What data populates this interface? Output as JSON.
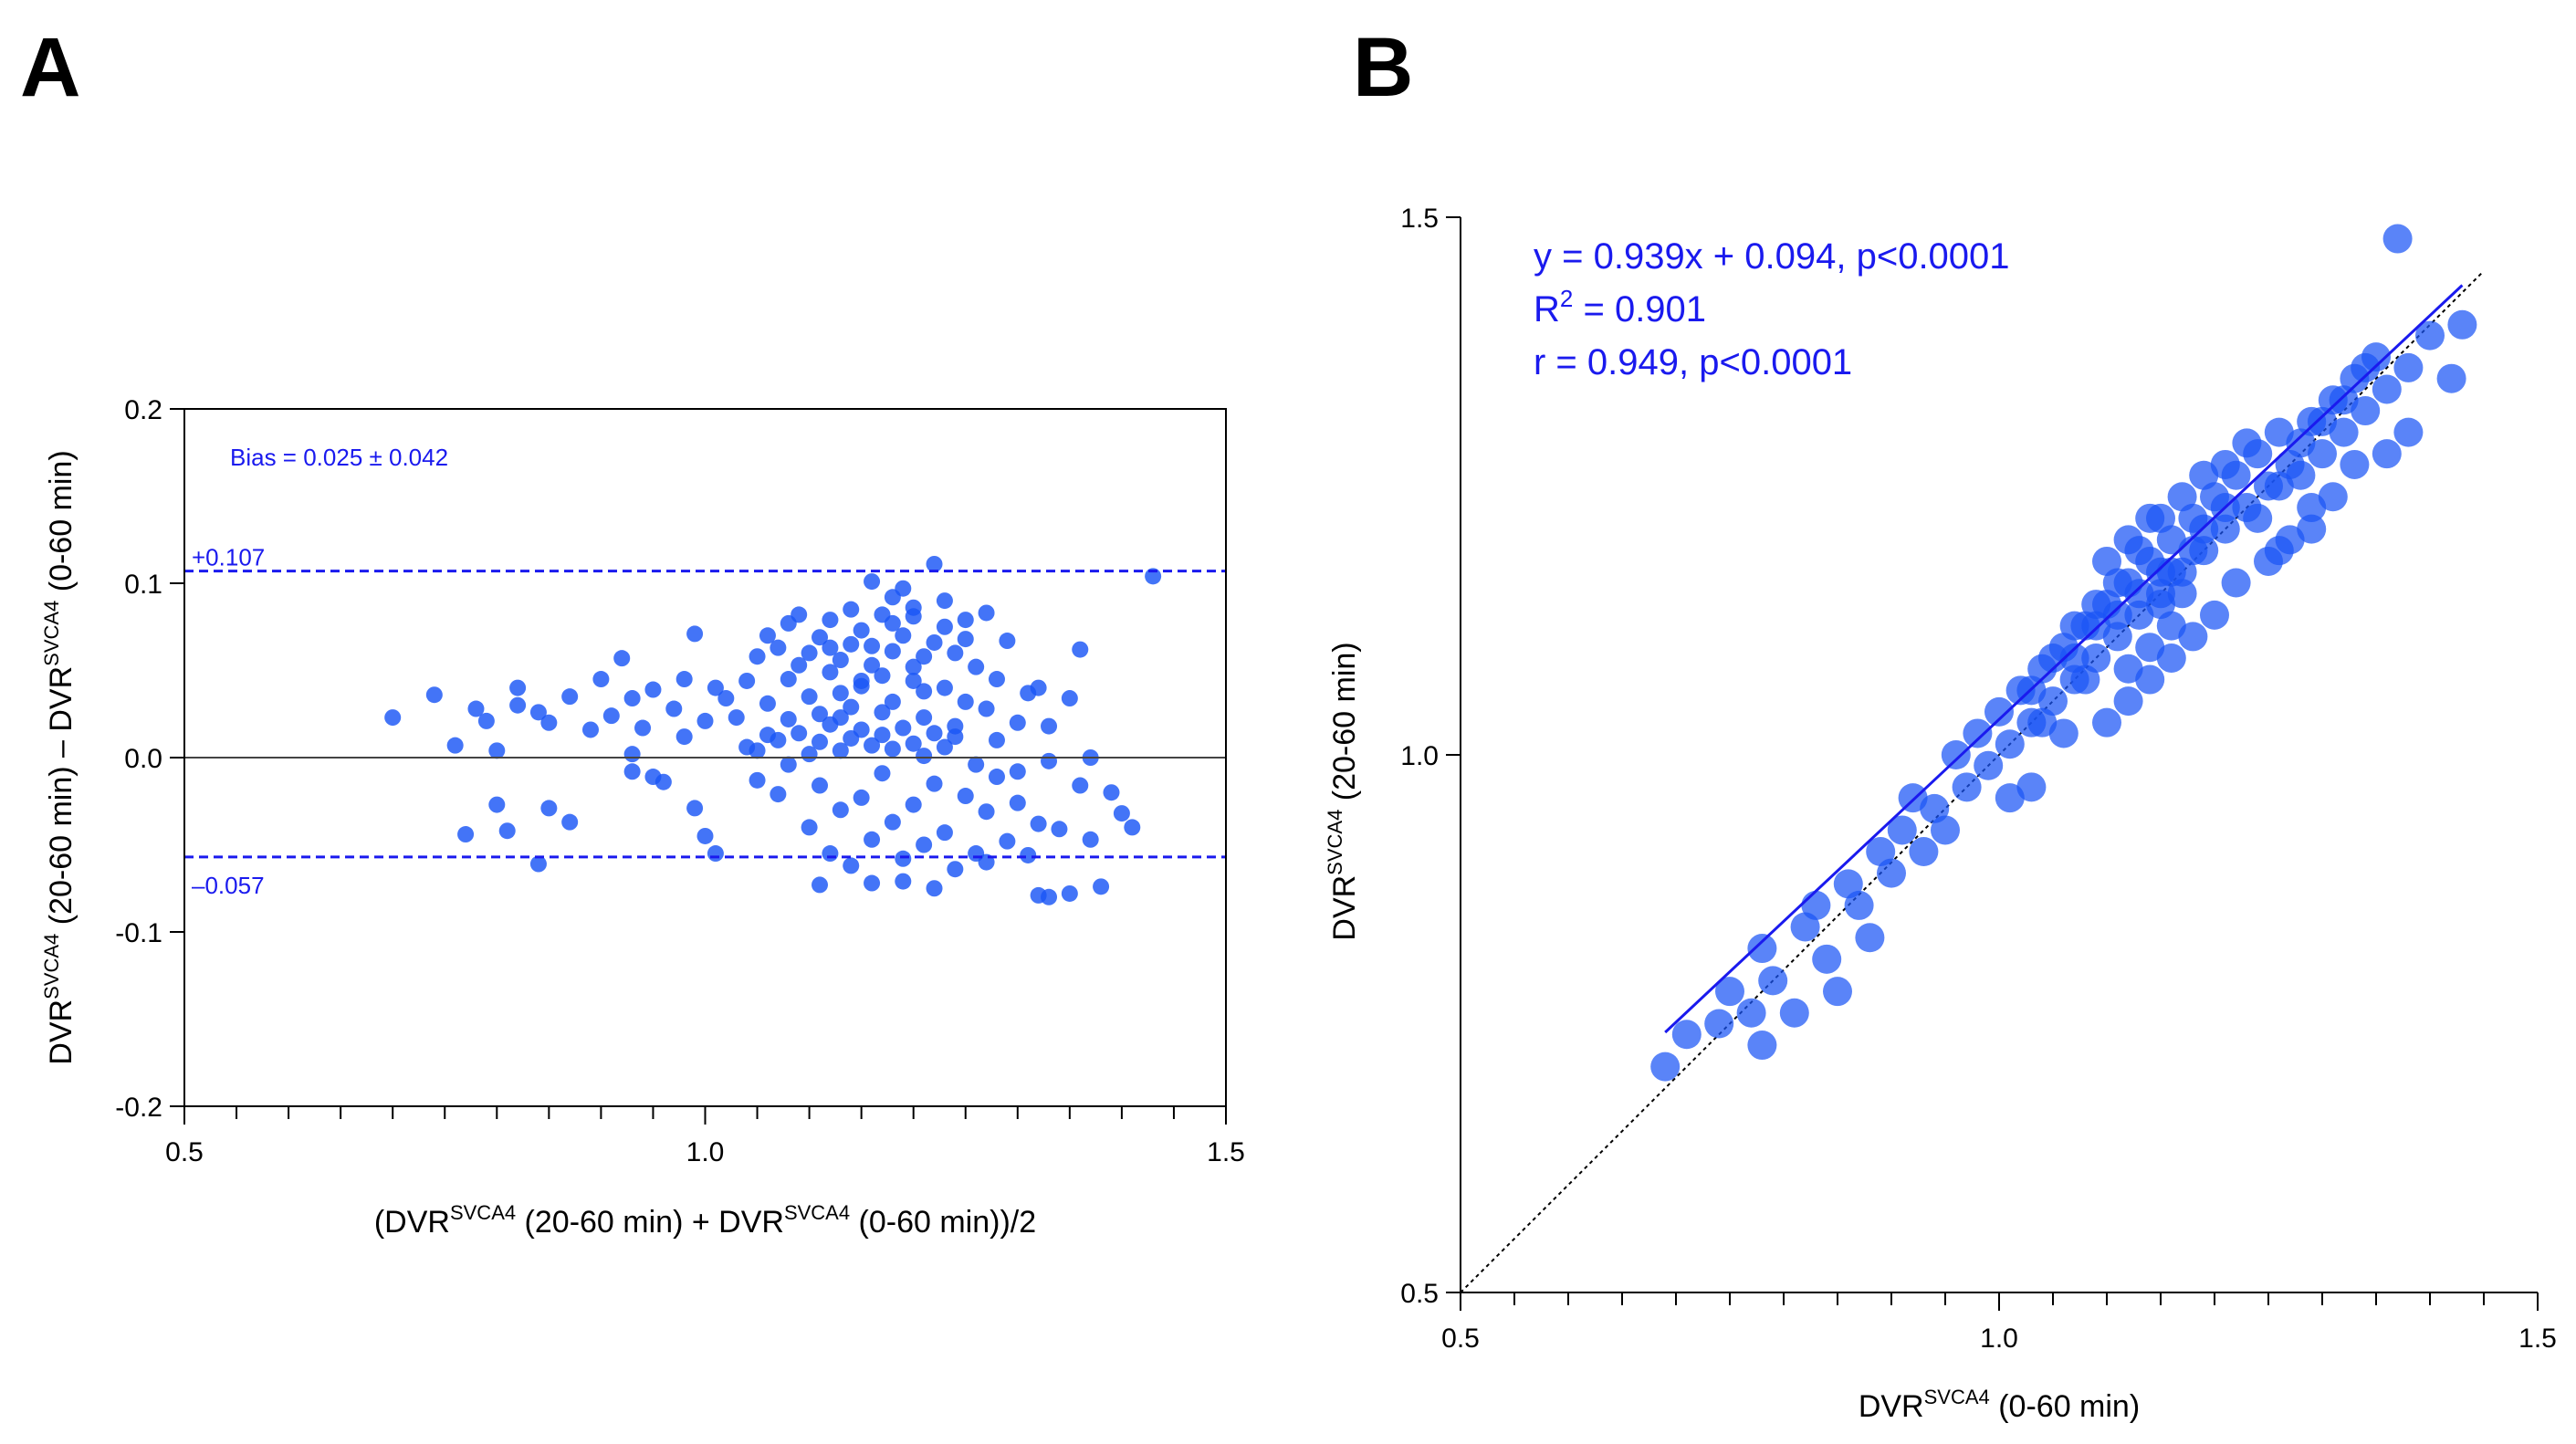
{
  "panels": {
    "a_letter": "A",
    "b_letter": "B"
  },
  "colors": {
    "point": "#1a55f5",
    "line": "#1a1aee",
    "axis": "#000000"
  },
  "chart_data": [
    {
      "type": "scatter",
      "panel": "A",
      "xlabel_parts": [
        "(DVR",
        "SVCA4",
        " (20-60 min) + DVR",
        "SVCA4",
        " (0-60 min))/2"
      ],
      "ylabel_parts": [
        "DVR",
        "SVCA4",
        " (20-60 min) – DVR",
        "SVCA4",
        " (0-60 min)"
      ],
      "xlim": [
        0.5,
        1.5
      ],
      "ylim": [
        -0.2,
        0.2
      ],
      "xticks": [
        0.5,
        1.0,
        1.5
      ],
      "xtick_labels": [
        "0.5",
        "1.0",
        "1.5"
      ],
      "yticks": [
        -0.2,
        -0.1,
        0.0,
        0.1,
        0.2
      ],
      "ytick_labels": [
        "-0.2",
        "-0.1",
        "0.0",
        "0.1",
        "0.2"
      ],
      "annotation": "Bias = 0.025 ± 0.042",
      "upper_loa": 0.107,
      "upper_loa_label": "+0.107",
      "lower_loa": -0.057,
      "lower_loa_label": "–0.057",
      "zero_line": 0,
      "grid": false,
      "points": [
        [
          0.7,
          0.023
        ],
        [
          0.74,
          0.036
        ],
        [
          0.76,
          0.007
        ],
        [
          0.78,
          0.028
        ],
        [
          0.79,
          0.021
        ],
        [
          0.8,
          0.004
        ],
        [
          0.82,
          0.04
        ],
        [
          0.82,
          0.03
        ],
        [
          0.84,
          0.026
        ],
        [
          0.85,
          0.02
        ],
        [
          0.87,
          0.035
        ],
        [
          0.89,
          0.016
        ],
        [
          0.9,
          0.045
        ],
        [
          0.91,
          0.024
        ],
        [
          0.92,
          0.057
        ],
        [
          0.93,
          0.034
        ],
        [
          0.94,
          0.017
        ],
        [
          0.95,
          0.039
        ],
        [
          0.97,
          0.028
        ],
        [
          0.98,
          0.045
        ],
        [
          0.99,
          0.071
        ],
        [
          1.0,
          0.021
        ],
        [
          1.01,
          0.04
        ],
        [
          1.02,
          0.034
        ],
        [
          0.77,
          -0.044
        ],
        [
          0.8,
          -0.027
        ],
        [
          0.81,
          -0.042
        ],
        [
          0.85,
          -0.029
        ],
        [
          0.87,
          -0.037
        ],
        [
          0.84,
          -0.061
        ],
        [
          0.93,
          -0.008
        ],
        [
          0.95,
          -0.011
        ],
        [
          0.93,
          0.002
        ],
        [
          0.96,
          -0.014
        ],
        [
          0.99,
          -0.029
        ],
        [
          1.0,
          -0.045
        ],
        [
          1.01,
          -0.055
        ],
        [
          0.98,
          0.012
        ],
        [
          1.03,
          0.023
        ],
        [
          1.04,
          0.044
        ],
        [
          1.05,
          0.058
        ],
        [
          1.06,
          0.031
        ],
        [
          1.06,
          0.07
        ],
        [
          1.07,
          0.063
        ],
        [
          1.08,
          0.077
        ],
        [
          1.08,
          0.045
        ],
        [
          1.09,
          0.082
        ],
        [
          1.09,
          0.053
        ],
        [
          1.1,
          0.06
        ],
        [
          1.1,
          0.035
        ],
        [
          1.11,
          0.069
        ],
        [
          1.11,
          0.025
        ],
        [
          1.12,
          0.079
        ],
        [
          1.12,
          0.049
        ],
        [
          1.13,
          0.056
        ],
        [
          1.13,
          0.037
        ],
        [
          1.14,
          0.065
        ],
        [
          1.14,
          0.029
        ],
        [
          1.15,
          0.044
        ],
        [
          1.15,
          0.073
        ],
        [
          1.16,
          0.101
        ],
        [
          1.16,
          0.053
        ],
        [
          1.17,
          0.047
        ],
        [
          1.17,
          0.082
        ],
        [
          1.18,
          0.061
        ],
        [
          1.18,
          0.032
        ],
        [
          1.19,
          0.07
        ],
        [
          1.19,
          0.097
        ],
        [
          1.2,
          0.044
        ],
        [
          1.2,
          0.081
        ],
        [
          1.21,
          0.058
        ],
        [
          1.21,
          0.023
        ],
        [
          1.22,
          0.111
        ],
        [
          1.22,
          0.066
        ],
        [
          1.23,
          0.04
        ],
        [
          1.23,
          0.075
        ],
        [
          1.24,
          0.06
        ],
        [
          1.25,
          0.032
        ],
        [
          1.25,
          0.079
        ],
        [
          1.26,
          0.052
        ],
        [
          1.27,
          0.028
        ],
        [
          1.27,
          0.083
        ],
        [
          1.28,
          0.045
        ],
        [
          1.29,
          0.067
        ],
        [
          1.3,
          0.02
        ],
        [
          1.31,
          0.037
        ],
        [
          1.32,
          0.04
        ],
        [
          1.35,
          0.034
        ],
        [
          1.36,
          0.062
        ],
        [
          1.04,
          0.006
        ],
        [
          1.06,
          0.013
        ],
        [
          1.07,
          0.01
        ],
        [
          1.09,
          0.014
        ],
        [
          1.1,
          0.002
        ],
        [
          1.11,
          0.009
        ],
        [
          1.12,
          0.019
        ],
        [
          1.13,
          0.004
        ],
        [
          1.14,
          0.011
        ],
        [
          1.15,
          0.016
        ],
        [
          1.16,
          0.007
        ],
        [
          1.17,
          0.013
        ],
        [
          1.18,
          0.005
        ],
        [
          1.19,
          0.017
        ],
        [
          1.2,
          0.008
        ],
        [
          1.21,
          0.001
        ],
        [
          1.22,
          0.014
        ],
        [
          1.23,
          0.006
        ],
        [
          1.24,
          0.012
        ],
        [
          1.05,
          -0.013
        ],
        [
          1.07,
          -0.021
        ],
        [
          1.08,
          -0.004
        ],
        [
          1.1,
          -0.04
        ],
        [
          1.11,
          -0.016
        ],
        [
          1.12,
          -0.055
        ],
        [
          1.13,
          -0.03
        ],
        [
          1.14,
          -0.062
        ],
        [
          1.15,
          -0.023
        ],
        [
          1.16,
          -0.047
        ],
        [
          1.17,
          -0.009
        ],
        [
          1.18,
          -0.037
        ],
        [
          1.19,
          -0.071
        ],
        [
          1.2,
          -0.027
        ],
        [
          1.21,
          -0.05
        ],
        [
          1.22,
          -0.015
        ],
        [
          1.23,
          -0.043
        ],
        [
          1.24,
          -0.064
        ],
        [
          1.25,
          -0.022
        ],
        [
          1.26,
          -0.055
        ],
        [
          1.27,
          -0.031
        ],
        [
          1.28,
          -0.011
        ],
        [
          1.29,
          -0.048
        ],
        [
          1.3,
          -0.026
        ],
        [
          1.31,
          -0.056
        ],
        [
          1.32,
          -0.038
        ],
        [
          1.33,
          -0.08
        ],
        [
          1.34,
          -0.041
        ],
        [
          1.35,
          -0.078
        ],
        [
          1.36,
          -0.016
        ],
        [
          1.37,
          -0.047
        ],
        [
          1.38,
          -0.074
        ],
        [
          1.39,
          -0.02
        ],
        [
          1.4,
          -0.032
        ],
        [
          1.41,
          -0.04
        ],
        [
          1.43,
          0.104
        ],
        [
          1.11,
          -0.073
        ],
        [
          1.16,
          -0.072
        ],
        [
          1.19,
          -0.058
        ],
        [
          1.22,
          -0.075
        ],
        [
          1.27,
          -0.06
        ],
        [
          1.32,
          -0.079
        ],
        [
          1.33,
          -0.002
        ],
        [
          1.37,
          0.0
        ],
        [
          1.26,
          -0.004
        ],
        [
          1.13,
          0.023
        ],
        [
          1.15,
          0.041
        ],
        [
          1.17,
          0.026
        ],
        [
          1.18,
          0.092
        ],
        [
          1.2,
          0.086
        ],
        [
          1.21,
          0.038
        ],
        [
          1.24,
          0.018
        ],
        [
          1.28,
          0.01
        ],
        [
          1.3,
          -0.008
        ],
        [
          1.33,
          0.018
        ],
        [
          1.05,
          0.004
        ],
        [
          1.08,
          0.022
        ],
        [
          1.12,
          0.063
        ],
        [
          1.14,
          0.085
        ],
        [
          1.16,
          0.064
        ],
        [
          1.18,
          0.077
        ],
        [
          1.2,
          0.052
        ],
        [
          1.23,
          0.09
        ],
        [
          1.25,
          0.068
        ]
      ]
    },
    {
      "type": "scatter",
      "panel": "B",
      "xlabel_parts": [
        "DVR",
        "SVCA4",
        " (0-60 min)"
      ],
      "ylabel_parts": [
        "DVR",
        "SVCA4",
        " (20-60 min)"
      ],
      "xlim": [
        0.5,
        1.5
      ],
      "ylim": [
        0.5,
        1.5
      ],
      "xticks": [
        0.5,
        1.0,
        1.5
      ],
      "xtick_labels": [
        "0.5",
        "1.0",
        "1.5"
      ],
      "yticks": [
        0.5,
        1.0,
        1.5
      ],
      "ytick_labels": [
        "0.5",
        "1.0",
        "1.5"
      ],
      "equation": "y = 0.939x + 0.094, p<0.0001",
      "r2_prefix": "R",
      "r2_sup": "2",
      "r2_value": " = 0.901",
      "r_text": "r = 0.949, p<0.0001",
      "regression": {
        "slope": 0.939,
        "intercept": 0.094,
        "x_range": [
          0.69,
          1.43
        ]
      },
      "identity_line": true,
      "grid": false,
      "points": [
        [
          0.69,
          0.71
        ],
        [
          0.71,
          0.74
        ],
        [
          0.74,
          0.75
        ],
        [
          0.75,
          0.78
        ],
        [
          0.77,
          0.76
        ],
        [
          0.78,
          0.73
        ],
        [
          0.78,
          0.82
        ],
        [
          0.79,
          0.79
        ],
        [
          0.81,
          0.76
        ],
        [
          0.82,
          0.84
        ],
        [
          0.83,
          0.86
        ],
        [
          0.84,
          0.81
        ],
        [
          0.85,
          0.78
        ],
        [
          0.86,
          0.88
        ],
        [
          0.87,
          0.86
        ],
        [
          0.88,
          0.83
        ],
        [
          0.89,
          0.91
        ],
        [
          0.9,
          0.89
        ],
        [
          0.91,
          0.93
        ],
        [
          0.92,
          0.96
        ],
        [
          0.93,
          0.91
        ],
        [
          0.94,
          0.95
        ],
        [
          0.95,
          0.93
        ],
        [
          0.96,
          1.0
        ],
        [
          0.97,
          0.97
        ],
        [
          0.98,
          1.02
        ],
        [
          0.99,
          0.99
        ],
        [
          1.0,
          1.04
        ],
        [
          1.01,
          1.01
        ],
        [
          1.02,
          1.06
        ],
        [
          1.03,
          1.03
        ],
        [
          1.04,
          1.08
        ],
        [
          1.05,
          1.05
        ],
        [
          1.06,
          1.1
        ],
        [
          1.07,
          1.07
        ],
        [
          1.08,
          1.12
        ],
        [
          1.09,
          1.09
        ],
        [
          1.1,
          1.14
        ],
        [
          1.11,
          1.11
        ],
        [
          1.12,
          1.16
        ],
        [
          1.13,
          1.13
        ],
        [
          1.14,
          1.18
        ],
        [
          1.15,
          1.15
        ],
        [
          1.16,
          1.2
        ],
        [
          1.17,
          1.17
        ],
        [
          1.18,
          1.22
        ],
        [
          1.19,
          1.19
        ],
        [
          1.2,
          1.24
        ],
        [
          1.21,
          1.21
        ],
        [
          1.22,
          1.26
        ],
        [
          1.23,
          1.23
        ],
        [
          1.24,
          1.28
        ],
        [
          1.25,
          1.25
        ],
        [
          1.26,
          1.3
        ],
        [
          1.27,
          1.27
        ],
        [
          1.28,
          1.29
        ],
        [
          1.29,
          1.31
        ],
        [
          1.3,
          1.28
        ],
        [
          1.31,
          1.33
        ],
        [
          1.32,
          1.3
        ],
        [
          1.33,
          1.35
        ],
        [
          1.34,
          1.32
        ],
        [
          1.35,
          1.37
        ],
        [
          1.36,
          1.34
        ],
        [
          1.37,
          1.48
        ],
        [
          1.38,
          1.36
        ],
        [
          1.4,
          1.39
        ],
        [
          1.42,
          1.35
        ],
        [
          1.43,
          1.4
        ],
        [
          1.38,
          1.3
        ],
        [
          1.36,
          1.28
        ],
        [
          1.33,
          1.27
        ],
        [
          1.29,
          1.23
        ],
        [
          1.27,
          1.2
        ],
        [
          1.25,
          1.18
        ],
        [
          1.22,
          1.16
        ],
        [
          1.2,
          1.13
        ],
        [
          1.18,
          1.11
        ],
        [
          1.16,
          1.09
        ],
        [
          1.14,
          1.07
        ],
        [
          1.12,
          1.05
        ],
        [
          1.1,
          1.03
        ],
        [
          1.06,
          1.02
        ],
        [
          1.03,
          0.97
        ],
        [
          1.01,
          0.96
        ],
        [
          1.07,
          1.12
        ],
        [
          1.09,
          1.14
        ],
        [
          1.11,
          1.16
        ],
        [
          1.13,
          1.19
        ],
        [
          1.15,
          1.22
        ],
        [
          1.17,
          1.24
        ],
        [
          1.19,
          1.26
        ],
        [
          1.21,
          1.27
        ],
        [
          1.23,
          1.29
        ],
        [
          1.1,
          1.18
        ],
        [
          1.12,
          1.2
        ],
        [
          1.14,
          1.22
        ],
        [
          1.16,
          1.17
        ],
        [
          1.18,
          1.19
        ],
        [
          1.08,
          1.07
        ],
        [
          1.05,
          1.09
        ],
        [
          1.04,
          1.03
        ],
        [
          1.15,
          1.14
        ],
        [
          1.17,
          1.15
        ],
        [
          1.19,
          1.21
        ],
        [
          1.21,
          1.23
        ],
        [
          1.24,
          1.22
        ],
        [
          1.26,
          1.25
        ],
        [
          1.28,
          1.26
        ],
        [
          1.3,
          1.31
        ],
        [
          1.32,
          1.33
        ],
        [
          1.34,
          1.36
        ],
        [
          1.26,
          1.19
        ],
        [
          1.29,
          1.21
        ],
        [
          1.31,
          1.24
        ],
        [
          1.12,
          1.08
        ],
        [
          1.14,
          1.1
        ],
        [
          1.16,
          1.12
        ],
        [
          1.11,
          1.13
        ],
        [
          1.13,
          1.15
        ],
        [
          1.15,
          1.17
        ],
        [
          1.09,
          1.12
        ],
        [
          1.07,
          1.09
        ],
        [
          1.03,
          1.06
        ]
      ]
    }
  ]
}
